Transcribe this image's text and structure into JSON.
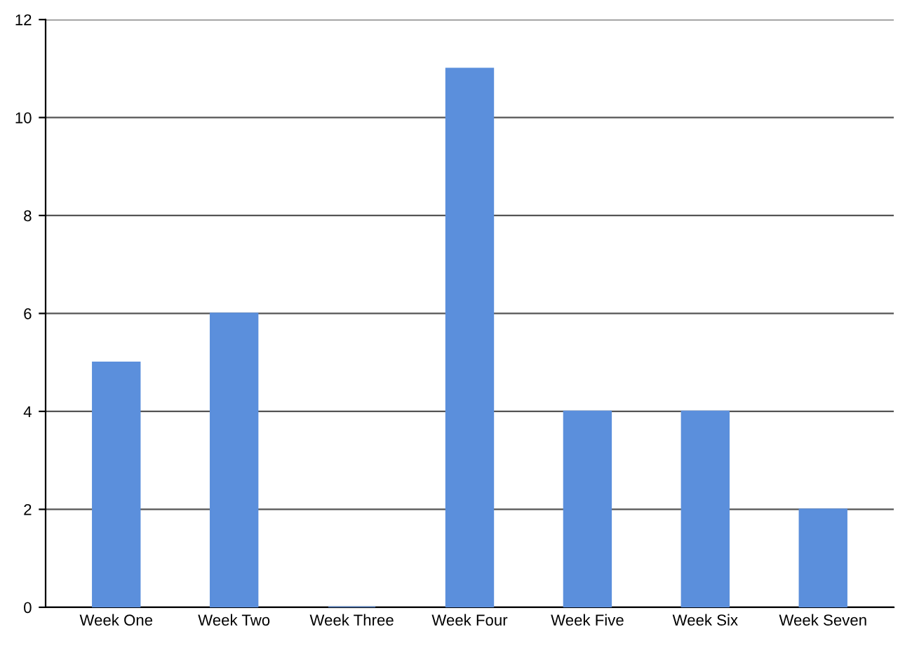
{
  "chart_data": {
    "type": "bar",
    "categories": [
      "Week One",
      "Week Two",
      "Week Three",
      "Week Four",
      "Week Five",
      "Week Six",
      "Week Seven"
    ],
    "values": [
      5,
      6,
      0,
      11,
      4,
      4,
      2
    ],
    "color": "#5b8fdc",
    "ylim": [
      0,
      12
    ],
    "yticks": [
      0,
      2,
      4,
      6,
      8,
      10,
      12
    ],
    "grid": "y"
  }
}
